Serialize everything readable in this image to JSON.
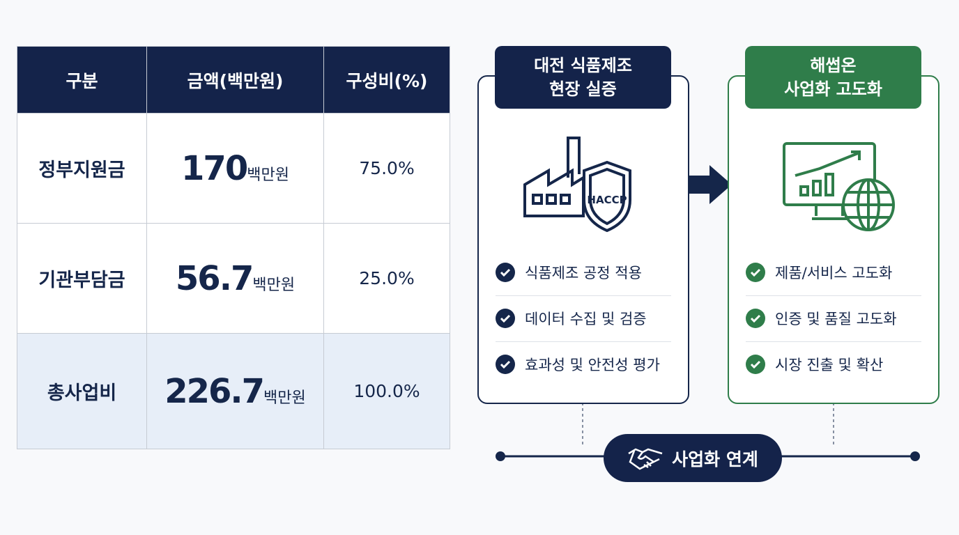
{
  "table": {
    "header": [
      "구분",
      "금액(백만원)",
      "구성비(%)"
    ],
    "rows": [
      {
        "label": "정부지원금",
        "amount": "170",
        "unit": "백만원",
        "share": "75.0%"
      },
      {
        "label": "기관부담금",
        "amount": "56.7",
        "unit": "백만원",
        "share": "25.0%"
      },
      {
        "label": "총사업비",
        "amount": "226.7",
        "unit": "백만원",
        "share": "100.0%"
      }
    ]
  },
  "left_card": {
    "title": [
      "대전 식품제조",
      "현장 실증"
    ],
    "icon_label": "HACCP",
    "items": [
      "식품제조 공정 적용",
      "데이터 수집 및 검증",
      "효과성 및 안전성 평가"
    ]
  },
  "right_card": {
    "title": [
      "해썹온",
      "사업화 고도화"
    ],
    "items": [
      "제품/서비스 고도화",
      "인증 및 품질 고도화",
      "시장 진출 및 확산"
    ]
  },
  "link": {
    "label": "사업화 연계"
  }
}
